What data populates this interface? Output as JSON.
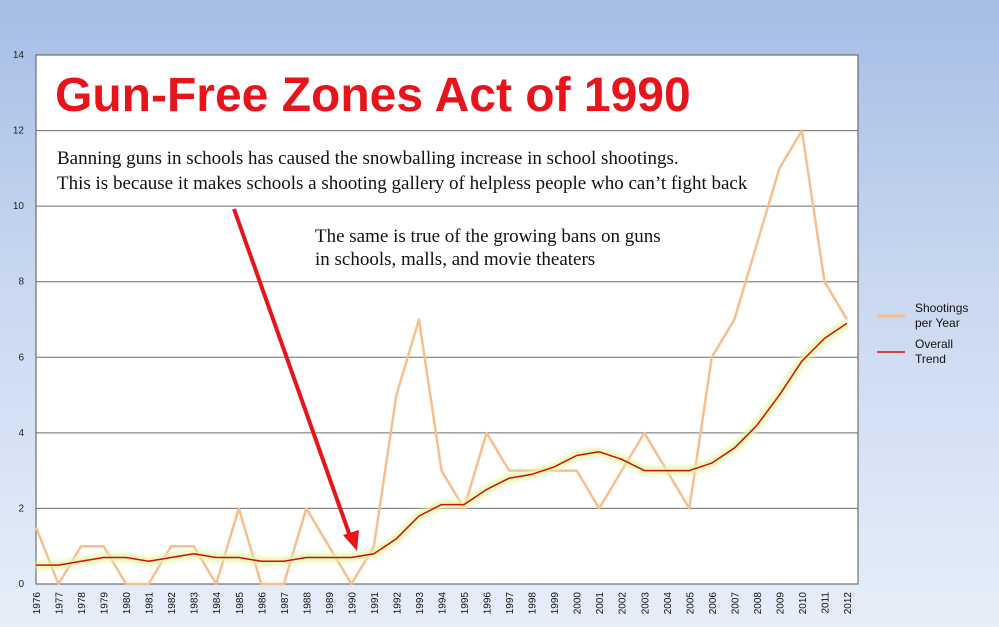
{
  "chart_data": {
    "type": "line",
    "title": "Gun-Free Zones Act of 1990",
    "annotations": [
      "Banning guns in schools has caused the snowballing increase in school shootings.",
      "This is because it makes schools a shooting gallery of helpless people who can’t fight back",
      "The same is true of the growing bans on guns",
      "in schools, malls, and movie theaters"
    ],
    "x": [
      "1976",
      "1977",
      "1978",
      "1979",
      "1980",
      "1981",
      "1982",
      "1983",
      "1984",
      "1985",
      "1986",
      "1987",
      "1988",
      "1989",
      "1990",
      "1991",
      "1992",
      "1993",
      "1994",
      "1995",
      "1996",
      "1997",
      "1998",
      "1999",
      "2000",
      "2001",
      "2002",
      "2003",
      "2004",
      "2005",
      "2006",
      "2007",
      "2008",
      "2009",
      "2010",
      "2011",
      "2012"
    ],
    "ylim": [
      0,
      14
    ],
    "yticks": [
      "0",
      "2",
      "4",
      "6",
      "8",
      "10",
      "12",
      "14"
    ],
    "grid": true,
    "legend_position": "right",
    "series": [
      {
        "name": "Shootings per Year",
        "legend_lines": [
          "Shootings",
          "per Year"
        ],
        "color": "#f7bf8e",
        "values": [
          1.5,
          0,
          1,
          1,
          0,
          0,
          1,
          1,
          0,
          2,
          0,
          0,
          2,
          1,
          0,
          1,
          5,
          7,
          3,
          2,
          4,
          3,
          3,
          3,
          3,
          2,
          3,
          4,
          3,
          2,
          6,
          7,
          9,
          11,
          12,
          8,
          7
        ]
      },
      {
        "name": "Overall Trend",
        "legend_lines": [
          "Overall",
          "Trend"
        ],
        "color": "#cc1111",
        "glow_color": "#e3f5a6",
        "values": [
          0.5,
          0.5,
          0.6,
          0.7,
          0.7,
          0.6,
          0.7,
          0.8,
          0.7,
          0.7,
          0.6,
          0.6,
          0.7,
          0.7,
          0.7,
          0.8,
          1.2,
          1.8,
          2.1,
          2.1,
          2.5,
          2.8,
          2.9,
          3.1,
          3.4,
          3.5,
          3.3,
          3.0,
          3.0,
          3.0,
          3.2,
          3.6,
          4.2,
          5.0,
          5.9,
          6.5,
          6.9
        ]
      }
    ],
    "arrow": {
      "color": "#e8141c",
      "points_to_year": "1990"
    }
  }
}
